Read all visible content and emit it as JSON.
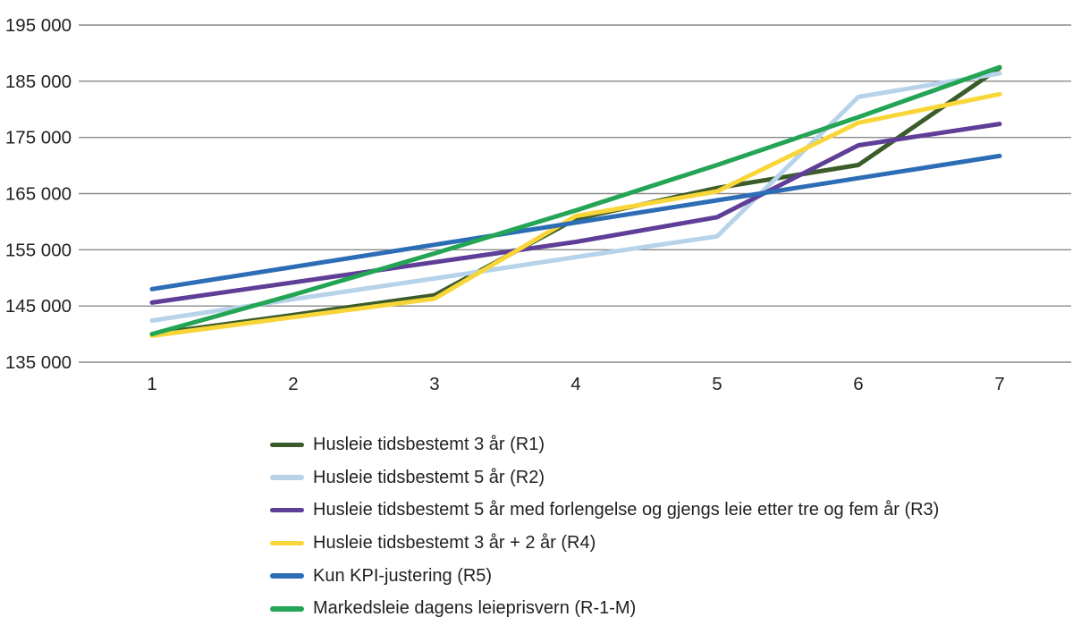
{
  "colors": {
    "background": "#ffffff",
    "text": "#231f20",
    "gridline": "#8a8a8a"
  },
  "chart_data": {
    "type": "line",
    "title": "",
    "xlabel": "",
    "ylabel": "",
    "x": [
      1,
      2,
      3,
      4,
      5,
      6,
      7
    ],
    "x_tick_labels": [
      "1",
      "2",
      "3",
      "4",
      "5",
      "6",
      "7"
    ],
    "ylim": [
      135000,
      195000
    ],
    "y_ticks": [
      195000,
      185000,
      175000,
      165000,
      155000,
      145000,
      135000
    ],
    "y_tick_labels": [
      "195 000",
      "185 000",
      "175 000",
      "165 000",
      "155 000",
      "145 000",
      "135 000"
    ],
    "grid": "horizontal",
    "legend_position": "bottom-left",
    "series": [
      {
        "name": "Husleie tidsbestemt 3 år (R1)",
        "color": "#3b5c2a",
        "values": [
          140000,
          143400,
          146900,
          160500,
          166000,
          170100,
          187400
        ]
      },
      {
        "name": "Husleie tidsbestemt 5 år (R2)",
        "color": "#b7d3e9",
        "values": [
          142400,
          146200,
          149900,
          153700,
          157400,
          182200,
          186400
        ]
      },
      {
        "name": "Husleie tidsbestemt 5 år med forlengelse og gjengs leie etter tre og fem år (R3)",
        "color": "#5f3e97",
        "values": [
          145600,
          149200,
          152800,
          156400,
          160800,
          173600,
          177400
        ]
      },
      {
        "name": "Husleie tidsbestemt 3 år + 2 år (R4)",
        "color": "#f8d639",
        "values": [
          139700,
          143000,
          146300,
          161000,
          165400,
          177600,
          182700
        ]
      },
      {
        "name": "Kun KPI-justering (R5)",
        "color": "#2d6db5",
        "values": [
          148000,
          151950,
          155900,
          159850,
          163800,
          167750,
          171700
        ]
      },
      {
        "name": "Markedsleie dagens leieprisvern (R-1-M)",
        "color": "#24a455",
        "values": [
          140000,
          147000,
          154350,
          162000,
          170100,
          178600,
          187500
        ]
      }
    ]
  }
}
